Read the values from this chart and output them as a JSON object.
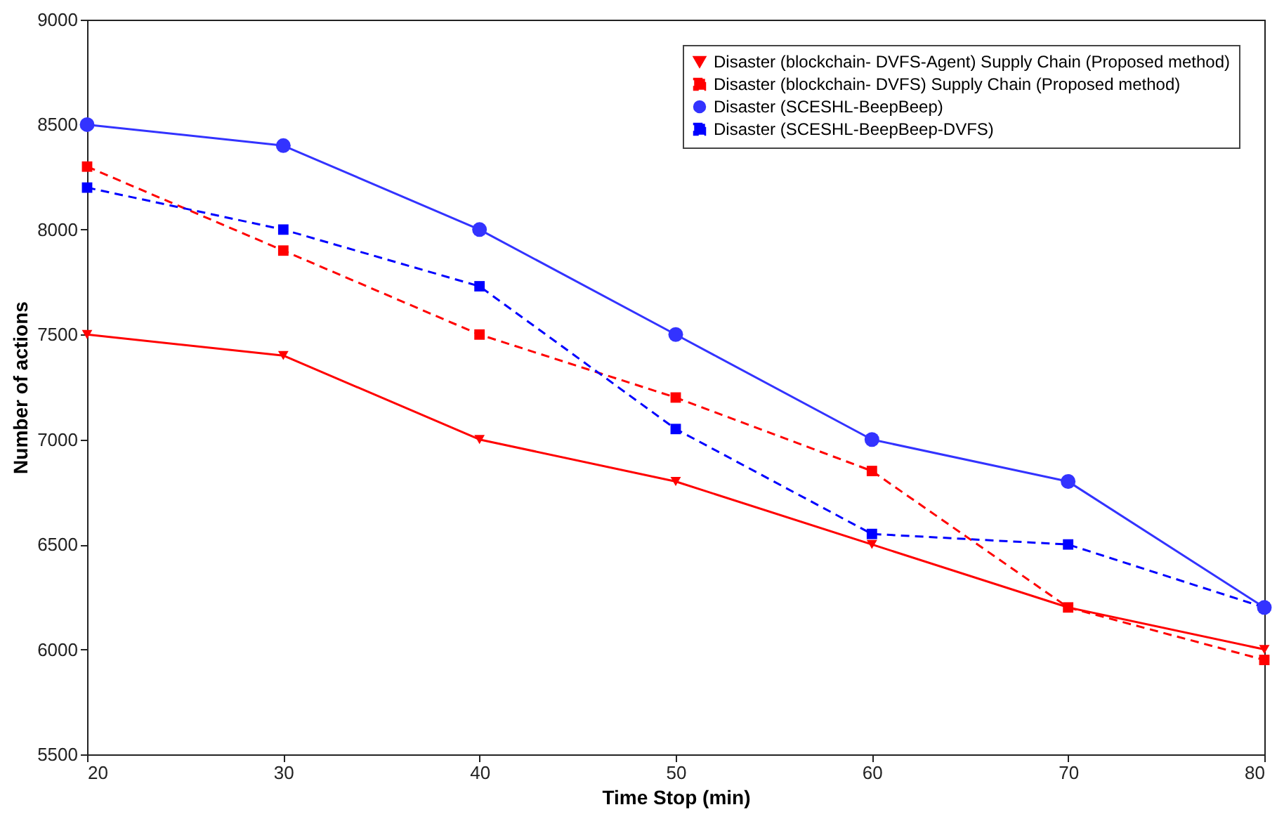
{
  "chart_data": {
    "type": "line",
    "xlabel": "Time Stop (min)",
    "ylabel": "Number of actions",
    "x": [
      20,
      30,
      40,
      50,
      60,
      70,
      80
    ],
    "xlim": [
      20,
      80
    ],
    "xticks": [
      20,
      30,
      40,
      50,
      60,
      70,
      80
    ],
    "ylim": [
      5500,
      9000
    ],
    "yticks": [
      5500,
      6000,
      6500,
      7000,
      7500,
      8000,
      8500,
      9000
    ],
    "grid": false,
    "legend": "top right",
    "series": [
      {
        "name": "Disaster (blockchain- DVFS-Agent) Supply Chain (Proposed method)",
        "color": "#ff0000",
        "marker": "triangle",
        "line_style": "solid",
        "values": [
          7500,
          7400,
          7000,
          6800,
          6500,
          6200,
          6000
        ]
      },
      {
        "name": "Disaster (blockchain- DVFS) Supply Chain (Proposed method)",
        "color": "#ff0000",
        "marker": "square",
        "line_style": "dashed",
        "values": [
          8300,
          7900,
          7500,
          7200,
          6850,
          6200,
          5950
        ]
      },
      {
        "name": "Disaster (SCESHL-BeepBeep)",
        "color": "#3333ff",
        "marker": "circle",
        "line_style": "solid",
        "values": [
          8500,
          8400,
          8000,
          7500,
          7000,
          6800,
          6200
        ]
      },
      {
        "name": "Disaster (SCESHL-BeepBeep-DVFS)",
        "color": "#0000ff",
        "marker": "square",
        "line_style": "dashed",
        "values": [
          8200,
          8000,
          7730,
          7050,
          6550,
          6500,
          6200
        ]
      }
    ]
  }
}
